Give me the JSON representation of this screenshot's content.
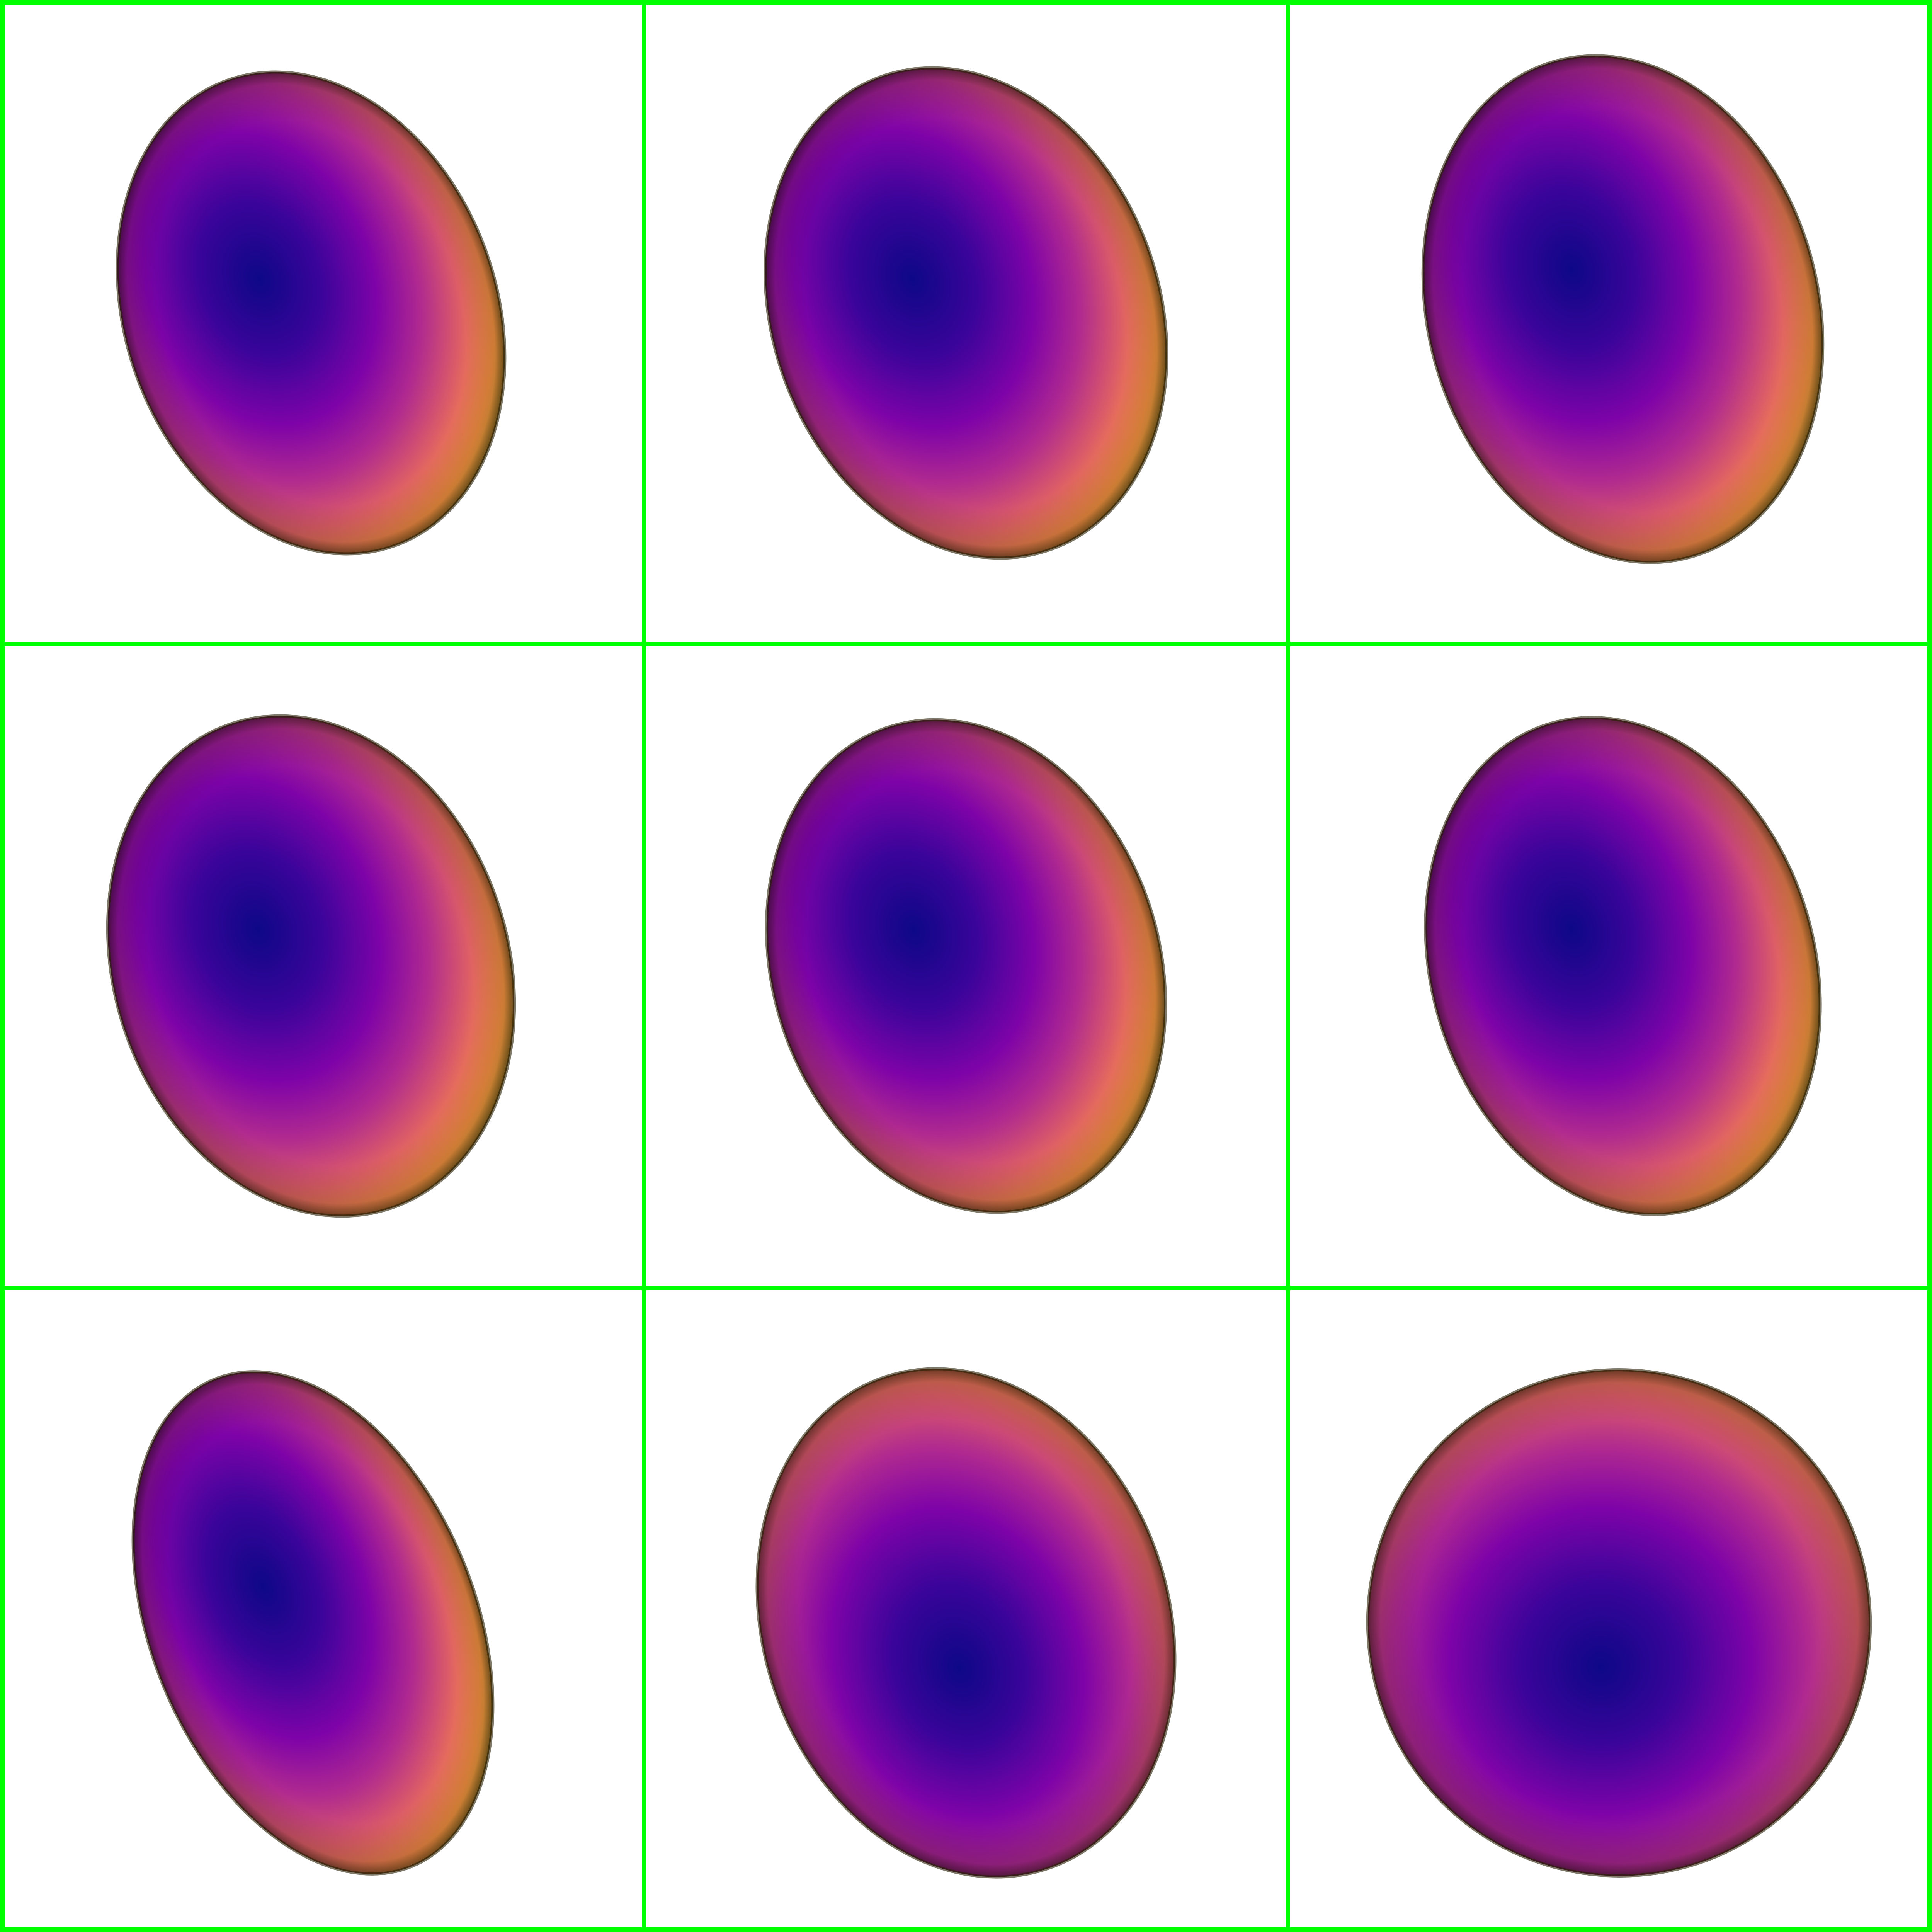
{
  "grid": {
    "rows": 3,
    "cols": 3,
    "border_color": "#00ff00",
    "background_color": "#ffffff"
  },
  "colormap": {
    "name": "plasma",
    "stops": [
      "#0d0887",
      "#5c01a6",
      "#9c179e",
      "#cc4778",
      "#ed7953",
      "#fdb42f",
      "#e0d52a",
      "#c9c01e"
    ]
  },
  "cells": [
    {
      "shape": "faceted-ellipsoid",
      "tilt": "leaning-left"
    },
    {
      "shape": "faceted-ellipsoid",
      "tilt": "leaning-left"
    },
    {
      "shape": "faceted-ellipsoid",
      "tilt": "leaning-left"
    },
    {
      "shape": "faceted-ellipsoid",
      "tilt": "leaning-left"
    },
    {
      "shape": "faceted-ellipsoid",
      "tilt": "leaning-left"
    },
    {
      "shape": "faceted-ellipsoid",
      "tilt": "leaning-left"
    },
    {
      "shape": "faceted-ellipsoid",
      "tilt": "leaning-left"
    },
    {
      "shape": "faceted-ellipsoid",
      "tilt": "leaning-left"
    },
    {
      "shape": "faceted-ellipsoid",
      "tilt": "near-round"
    }
  ]
}
